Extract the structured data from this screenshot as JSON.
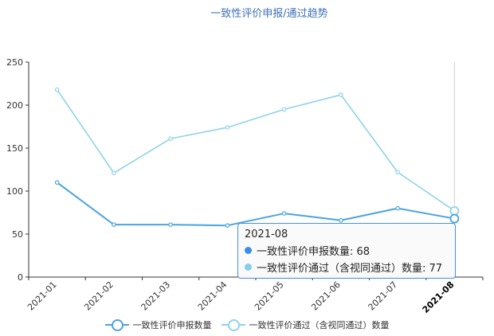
{
  "chart_data": {
    "type": "line",
    "title": "一致性评价申报/通过趋势",
    "categories": [
      "2021-01",
      "2021-02",
      "2021-03",
      "2021-04",
      "2021-05",
      "2021-06",
      "2021-07",
      "2021-08"
    ],
    "series": [
      {
        "name": "一致性评价申报数量",
        "values": [
          110,
          61,
          61,
          60,
          74,
          66,
          80,
          68
        ],
        "color": "#4aa3df"
      },
      {
        "name": "一致性评价通过（含视同通过）数量",
        "values": [
          218,
          121,
          161,
          174,
          195,
          212,
          122,
          77
        ],
        "color": "#8ed3ea"
      }
    ],
    "y_ticks": [
      0,
      50,
      100,
      150,
      200,
      250
    ],
    "ylim": [
      0,
      250
    ],
    "xlabel": "",
    "ylabel": "",
    "grid": false,
    "legend_position": "bottom"
  },
  "tooltip": {
    "title": "2021-08",
    "rows": [
      {
        "label": "一致性评价申报数量: 68",
        "color": "#3a8ee6"
      },
      {
        "label": "一致性评价通过（含视同通过）数量: 77",
        "color": "#87cfe8"
      }
    ]
  },
  "legend": [
    {
      "label": "一致性评价申报数量",
      "color": "#4aa3df"
    },
    {
      "label": "一致性评价通过（含视同通过）数量",
      "color": "#8ed3ea"
    }
  ]
}
